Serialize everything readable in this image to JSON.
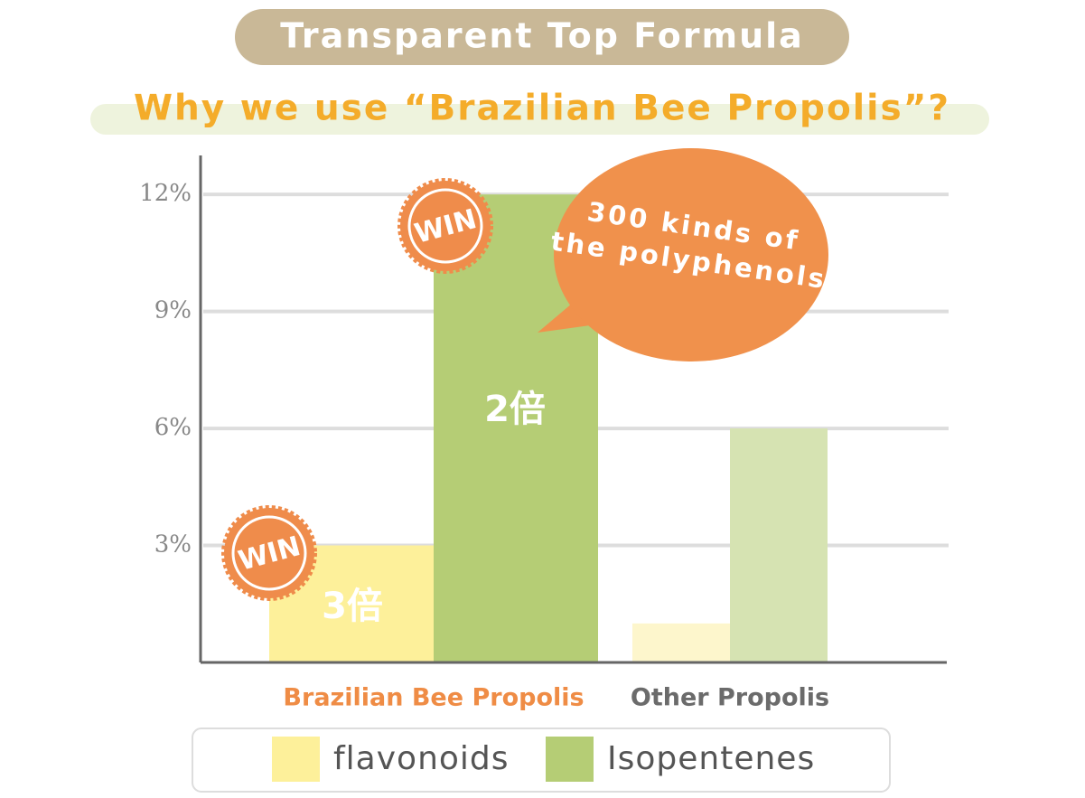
{
  "chart_data": {
    "type": "bar",
    "title": "Transparent Top Formula",
    "subtitle": "Why we use “Brazilian Bee Propolis”?",
    "categories": [
      "Brazilian Bee Propolis",
      "Other Propolis"
    ],
    "category_colors": [
      "#ef8c45",
      "#6b6b6b"
    ],
    "series": [
      {
        "name": "flavonoids",
        "color": "#fdf09a",
        "colors": [
          "#fdf09a",
          "#fdf6cc"
        ],
        "values": [
          3,
          1
        ]
      },
      {
        "name": "Isopentenes",
        "color": "#b5cd75",
        "colors": [
          "#b5cd75",
          "#d6e3b2"
        ],
        "values": [
          12,
          6
        ]
      }
    ],
    "ylim": [
      0,
      13
    ],
    "yticks": [
      {
        "value": 3,
        "label": "3%"
      },
      {
        "value": 6,
        "label": "6%"
      },
      {
        "value": 9,
        "label": "9%"
      },
      {
        "value": 12,
        "label": "12%"
      }
    ],
    "grid": true,
    "annotations": [
      "WIN",
      "WIN",
      "3倍",
      "2倍",
      "300 kinds of",
      "the polyphenols"
    ]
  }
}
